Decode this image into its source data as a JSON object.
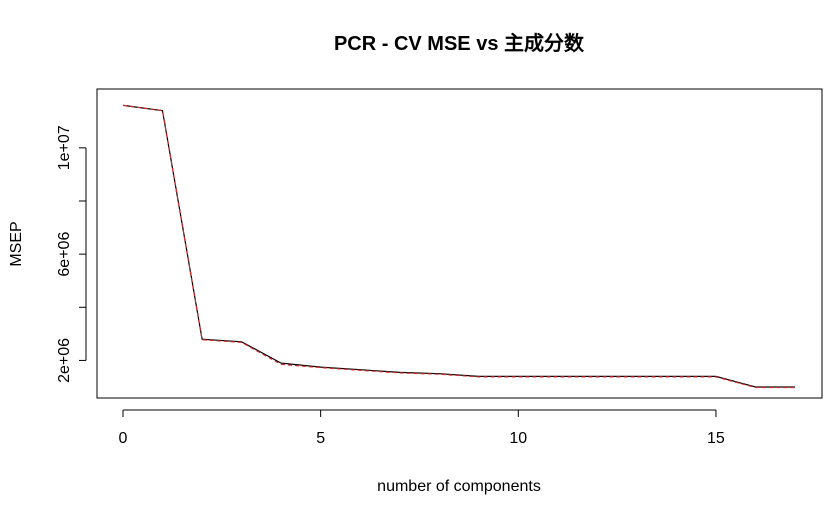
{
  "chart_data": {
    "type": "line",
    "title": "PCR - CV MSE vs 主成分数",
    "xlabel": "number of components",
    "ylabel": "MSEP",
    "xlim": [
      0,
      17
    ],
    "ylim": [
      1000000,
      11800000
    ],
    "x_ticks": [
      0,
      5,
      10,
      15
    ],
    "x_tick_labels": [
      "0",
      "5",
      "10",
      "15"
    ],
    "y_ticks": [
      2000000,
      6000000,
      10000000
    ],
    "y_tick_labels": [
      "2e+06",
      "6e+06",
      "1e+07"
    ],
    "grid": false,
    "series": [
      {
        "line_style": "solid",
        "color": "#000000",
        "x": [
          0,
          1,
          2,
          3,
          4,
          5,
          6,
          7,
          8,
          9,
          10,
          11,
          12,
          13,
          14,
          15,
          16,
          17
        ],
        "values": [
          11600000,
          11400000,
          2800000,
          2700000,
          1900000,
          1750000,
          1650000,
          1550000,
          1500000,
          1400000,
          1400000,
          1400000,
          1400000,
          1400000,
          1400000,
          1400000,
          1000000,
          1000000
        ]
      },
      {
        "line_style": "dashed",
        "color": "#d62728",
        "x": [
          0,
          1,
          2,
          3,
          4,
          5,
          6,
          7,
          8,
          9,
          10,
          11,
          12,
          13,
          14,
          15,
          16,
          17
        ],
        "values": [
          11600000,
          11400000,
          2780000,
          2680000,
          1850000,
          1730000,
          1630000,
          1530000,
          1480000,
          1380000,
          1380000,
          1380000,
          1380000,
          1380000,
          1380000,
          1380000,
          980000,
          980000
        ]
      }
    ]
  }
}
